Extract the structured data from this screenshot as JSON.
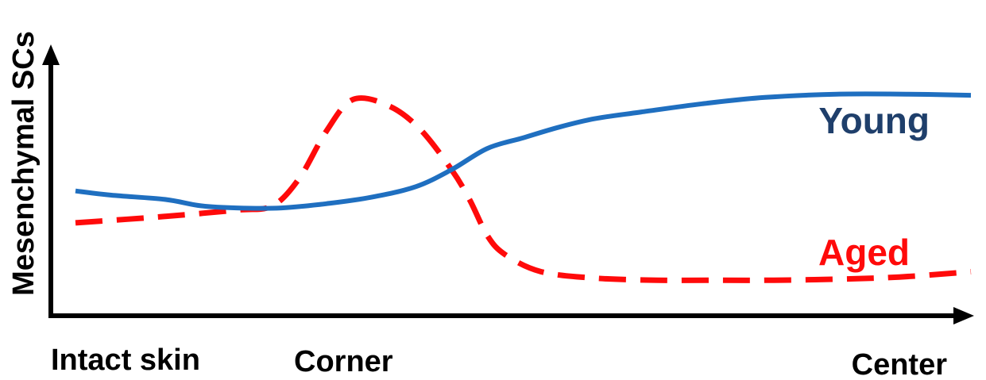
{
  "chart_data": {
    "type": "line",
    "ylabel": "Mesenchymal SCs",
    "xlabel": "",
    "categories": [
      "Intact skin",
      "Corner",
      "Center"
    ],
    "xlim": [
      0,
      100
    ],
    "ylim": [
      0,
      100
    ],
    "grid": false,
    "axis_ticks": false,
    "legend": "inline labels at right",
    "series": [
      {
        "name": "Young",
        "color": "#1f6fc0",
        "label_color": "#1f3f6b",
        "line_style": "solid",
        "x": [
          0,
          4,
          10,
          14,
          18,
          23,
          28,
          33,
          38,
          42,
          46,
          50,
          54,
          58,
          63,
          70,
          77,
          85,
          93,
          100
        ],
        "y": [
          49,
          47,
          45,
          42,
          41,
          41,
          43,
          46,
          51,
          59,
          69,
          74,
          79,
          83,
          86,
          90,
          93,
          94.5,
          94.5,
          94
        ]
      },
      {
        "name": "Aged",
        "color": "#ff0a0a",
        "label_color": "#ff0a0a",
        "line_style": "dashed",
        "x": [
          0,
          10,
          18,
          22,
          25,
          28,
          31,
          35,
          38.5,
          42,
          44,
          46,
          48,
          52,
          58,
          65,
          72,
          78,
          85,
          92,
          100
        ],
        "y": [
          34,
          37,
          40,
          42,
          55,
          77,
          92,
          89,
          78,
          59,
          45,
          28,
          19,
          11,
          8,
          7,
          7,
          7,
          7.5,
          8.5,
          11
        ]
      }
    ],
    "annotations": [
      {
        "text": "Young",
        "series": "Young"
      },
      {
        "text": "Aged",
        "series": "Aged"
      }
    ]
  }
}
